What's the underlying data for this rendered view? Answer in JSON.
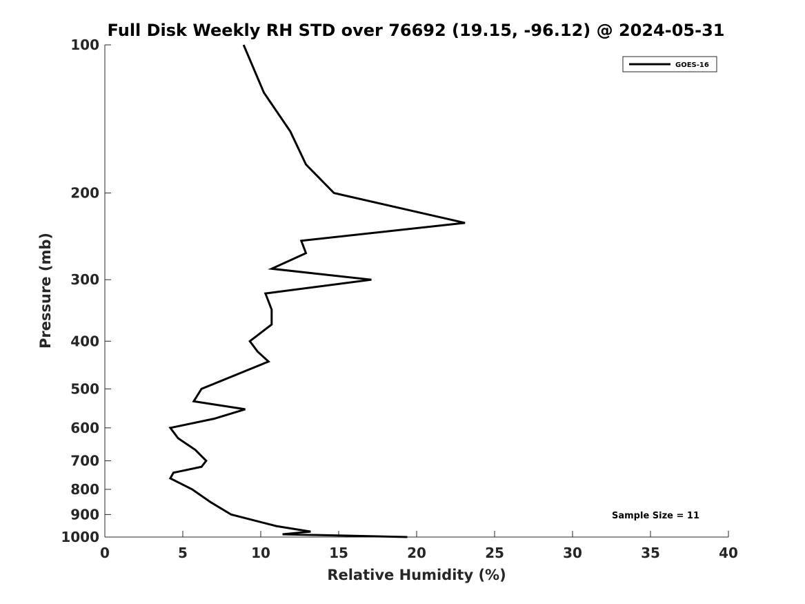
{
  "chart_data": {
    "type": "line",
    "title": "Full Disk Weekly RH STD over 76692 (19.15, -96.12) @ 2024-05-31",
    "xlabel": "Relative Humidity (%)",
    "ylabel": "Pressure (mb)",
    "xlim": [
      0,
      40
    ],
    "ylim": [
      100,
      1000
    ],
    "y_scale": "log",
    "y_inverted": true,
    "xticks": [
      0,
      5,
      10,
      15,
      20,
      25,
      30,
      35,
      40
    ],
    "yticks": [
      100,
      200,
      300,
      400,
      500,
      600,
      700,
      800,
      900,
      1000
    ],
    "grid": false,
    "legend_position": "top-right",
    "annotation": "Sample Size = 11",
    "series": [
      {
        "name": "GOES-16",
        "color": "#000000",
        "points": [
          [
            8.9,
            100
          ],
          [
            10.2,
            125
          ],
          [
            11.9,
            150
          ],
          [
            12.9,
            175
          ],
          [
            14.7,
            200
          ],
          [
            23.1,
            230
          ],
          [
            12.6,
            250
          ],
          [
            12.9,
            265
          ],
          [
            10.7,
            285
          ],
          [
            17.1,
            300
          ],
          [
            10.3,
            320
          ],
          [
            10.7,
            345
          ],
          [
            10.7,
            370
          ],
          [
            9.3,
            400
          ],
          [
            9.8,
            420
          ],
          [
            10.5,
            440
          ],
          [
            6.2,
            500
          ],
          [
            5.7,
            530
          ],
          [
            9.0,
            550
          ],
          [
            7.0,
            575
          ],
          [
            4.2,
            600
          ],
          [
            4.7,
            630
          ],
          [
            5.8,
            665
          ],
          [
            6.5,
            700
          ],
          [
            6.2,
            720
          ],
          [
            4.4,
            740
          ],
          [
            4.2,
            760
          ],
          [
            5.6,
            800
          ],
          [
            6.8,
            850
          ],
          [
            8.1,
            900
          ],
          [
            11.0,
            950
          ],
          [
            13.2,
            975
          ],
          [
            11.4,
            987
          ],
          [
            19.4,
            1000
          ]
        ]
      }
    ]
  }
}
